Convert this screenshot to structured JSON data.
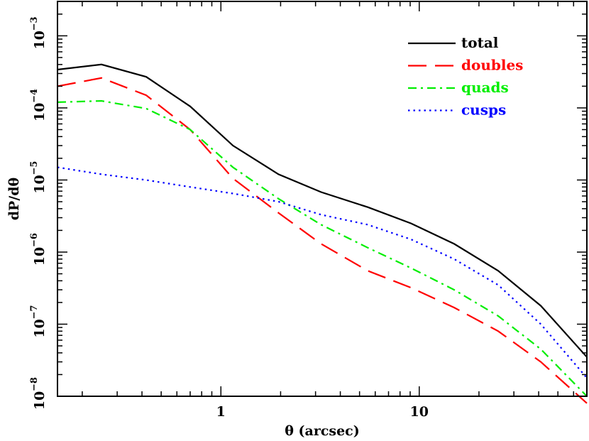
{
  "chart_data": {
    "type": "line",
    "xlabel": "θ (arcsec)",
    "ylabel": "dP/dθ",
    "xscale": "log",
    "yscale": "log",
    "xlim": [
      0.15,
      70
    ],
    "ylim": [
      1e-08,
      0.003
    ],
    "x_ticks": [
      {
        "value": 1,
        "label": "1"
      },
      {
        "value": 10,
        "label": "10"
      }
    ],
    "y_ticks": [
      {
        "value": 1e-08,
        "base": "10",
        "exp": "−8"
      },
      {
        "value": 1e-07,
        "base": "10",
        "exp": "−7"
      },
      {
        "value": 1e-06,
        "base": "10",
        "exp": "−6"
      },
      {
        "value": 1e-05,
        "base": "10",
        "exp": "−5"
      },
      {
        "value": 0.0001,
        "base": "10",
        "exp": "−4"
      },
      {
        "value": 0.001,
        "base": "10",
        "exp": "−3"
      }
    ],
    "legend_position": "top-right",
    "grid": false,
    "series": [
      {
        "name": "total",
        "color": "#000000",
        "dash": "solid",
        "x": [
          0.15,
          0.25,
          0.42,
          0.7,
          1.15,
          1.95,
          3.2,
          5.5,
          9.1,
          15,
          25,
          41,
          70
        ],
        "y": [
          0.00034,
          0.0004,
          0.00027,
          0.000105,
          3e-05,
          1.2e-05,
          6.8e-06,
          4.2e-06,
          2.5e-06,
          1.3e-06,
          5.5e-07,
          1.8e-07,
          3.5e-08
        ]
      },
      {
        "name": "doubles",
        "color": "#ff0000",
        "dash": "long-dash",
        "x": [
          0.15,
          0.25,
          0.42,
          0.7,
          1.15,
          1.95,
          3.2,
          5.5,
          9.1,
          15,
          25,
          41,
          70
        ],
        "y": [
          0.0002,
          0.00026,
          0.00015,
          5e-05,
          1.05e-05,
          3.5e-06,
          1.3e-06,
          5.5e-07,
          3.2e-07,
          1.7e-07,
          8e-08,
          3e-08,
          8e-09
        ]
      },
      {
        "name": "quads",
        "color": "#00ee00",
        "dash": "dash-dot",
        "x": [
          0.15,
          0.25,
          0.42,
          0.7,
          1.15,
          1.95,
          3.2,
          5.5,
          9.1,
          15,
          25,
          41,
          70
        ],
        "y": [
          0.00012,
          0.000125,
          9.8e-05,
          5e-05,
          1.5e-05,
          5.5e-06,
          2.4e-06,
          1.15e-06,
          6e-07,
          3e-07,
          1.3e-07,
          4.5e-08,
          1e-08
        ]
      },
      {
        "name": "cusps",
        "color": "#0000ff",
        "dash": "dotted",
        "x": [
          0.15,
          0.25,
          0.42,
          0.7,
          1.15,
          1.95,
          3.2,
          5.5,
          9.1,
          15,
          25,
          41,
          70
        ],
        "y": [
          1.5e-05,
          1.2e-05,
          1e-05,
          8e-06,
          6.5e-06,
          5e-06,
          3.3e-06,
          2.4e-06,
          1.5e-06,
          8e-07,
          3.5e-07,
          1e-07,
          1.8e-08
        ]
      }
    ]
  }
}
